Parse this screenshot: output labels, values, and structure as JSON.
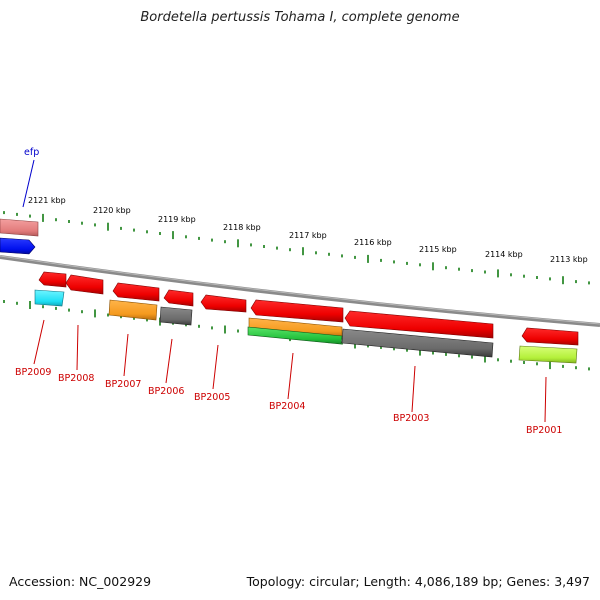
{
  "title": "Bordetella pertussis Tohama I, complete genome",
  "footer": {
    "accession": "Accession: NC_002929",
    "summary": "Topology: circular; Length: 4,086,189 bp; Genes: 3,497"
  },
  "colors": {
    "backbone": "#8a8a8a",
    "tick": "#2e8b2e",
    "kbp_label": "#000000",
    "gene_label": "#cc0000",
    "highlight_label": "#0000cc"
  },
  "kbp_labels": [
    "2121 kbp",
    "2120 kbp",
    "2119 kbp",
    "2118 kbp",
    "2117 kbp",
    "2116 kbp",
    "2115 kbp",
    "2114 kbp",
    "2113 kbp"
  ],
  "gene_labels": [
    "BP2009",
    "BP2008",
    "BP2007",
    "BP2006",
    "BP2005",
    "BP2004",
    "BP2003",
    "BP2001"
  ],
  "highlight_label": "efp"
}
